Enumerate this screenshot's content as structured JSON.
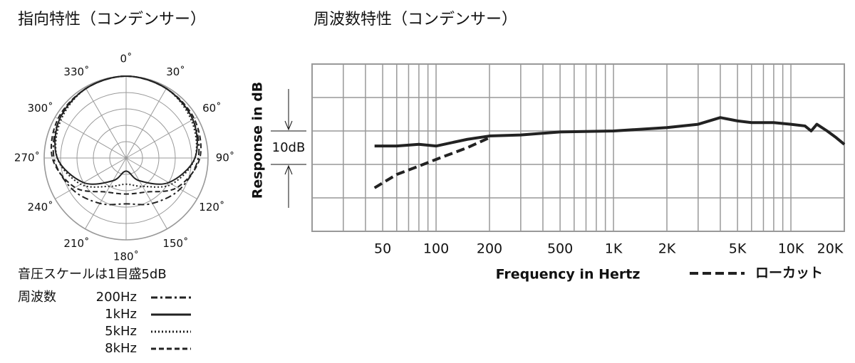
{
  "chart_data": [
    {
      "type": "polar",
      "title": "指向特性（コンデンサー）",
      "theta": [
        0,
        30,
        60,
        90,
        120,
        150,
        180,
        210,
        240,
        270,
        300,
        330
      ],
      "thetaticks": [
        {
          "value": 0,
          "label": "0˚"
        },
        {
          "value": 30,
          "label": "30˚"
        },
        {
          "value": 60,
          "label": "60˚"
        },
        {
          "value": 90,
          "label": "90˚"
        },
        {
          "value": 120,
          "label": "120˚"
        },
        {
          "value": 150,
          "label": "150˚"
        },
        {
          "value": 180,
          "label": "180˚"
        },
        {
          "value": 210,
          "label": "210˚"
        },
        {
          "value": 240,
          "label": "240˚"
        },
        {
          "value": 270,
          "label": "270˚"
        },
        {
          "value": 300,
          "label": "300˚"
        },
        {
          "value": 330,
          "label": "330˚"
        }
      ],
      "rlim": [
        -25,
        0
      ],
      "rticks": [
        -20,
        -15,
        -10,
        -5,
        0
      ],
      "scale_note": "音圧スケールは1目盛5dB",
      "legend_title": "周波数",
      "series": [
        {
          "name": "200Hz",
          "color": "#222",
          "dash": "9 4 3 4",
          "values": [
            0,
            -0.5,
            -1.5,
            -3,
            -6,
            -9,
            -11,
            -9,
            -6,
            -3,
            -1.5,
            -0.5
          ]
        },
        {
          "name": "1kHz",
          "color": "#222",
          "dash": "",
          "values": [
            0,
            -0.5,
            -1.5,
            -4,
            -10,
            -17,
            -21,
            -17,
            -10,
            -4,
            -1.5,
            -0.5
          ]
        },
        {
          "name": "5kHz",
          "color": "#222",
          "dash": "2 3",
          "values": [
            0,
            -0.5,
            -2,
            -4,
            -9,
            -15,
            -17,
            -15,
            -9,
            -4,
            -2,
            -0.5
          ]
        },
        {
          "name": "8kHz",
          "color": "#222",
          "dash": "7 4",
          "values": [
            0,
            -0.5,
            -1,
            -2.5,
            -7,
            -13,
            -14,
            -13,
            -7,
            -2.5,
            -1,
            -0.5
          ]
        }
      ]
    },
    {
      "type": "line",
      "title": "周波数特性（コンデンサー）",
      "log_x": true,
      "xlim": [
        20,
        20000
      ],
      "xticks": [
        50,
        100,
        200,
        500,
        {
          "value": 1000,
          "label": "1K"
        },
        {
          "value": 2000,
          "label": "2K"
        },
        {
          "value": 5000,
          "label": "5K"
        },
        {
          "value": 10000,
          "label": "10K"
        },
        {
          "value": 20000,
          "label": "20K"
        }
      ],
      "xgrid": [
        30,
        40,
        50,
        60,
        70,
        80,
        90,
        100,
        200,
        300,
        400,
        500,
        600,
        700,
        800,
        900,
        1000,
        2000,
        3000,
        4000,
        5000,
        6000,
        7000,
        8000,
        9000,
        10000
      ],
      "ylim": [
        -30,
        20
      ],
      "yticks": [
        -30,
        -20,
        -10,
        0,
        10,
        20
      ],
      "y_label": "Response in dB",
      "scale_label": "10dB",
      "x_label": "Frequency in Hertz",
      "series": [
        {
          "color": "#222",
          "dash": "",
          "x": [
            45,
            60,
            80,
            100,
            150,
            200,
            300,
            500,
            1000,
            2000,
            3000,
            4000,
            5000,
            6000,
            7000,
            8000,
            10000,
            12000,
            13000,
            14000,
            16000,
            18000,
            20000
          ],
          "values": [
            -4.5,
            -4.5,
            -4,
            -4.5,
            -2.5,
            -1.5,
            -1.2,
            -0.3,
            0,
            1,
            2,
            4,
            3,
            2.5,
            2.5,
            2.5,
            2,
            1.5,
            0,
            2,
            0,
            -2,
            -4
          ]
        },
        {
          "name": "ローカット",
          "color": "#222",
          "dash": "12 6",
          "x": [
            45,
            60,
            80,
            100,
            150,
            200
          ],
          "values": [
            -17,
            -13,
            -10.5,
            -8.5,
            -5,
            -2
          ]
        }
      ]
    }
  ]
}
